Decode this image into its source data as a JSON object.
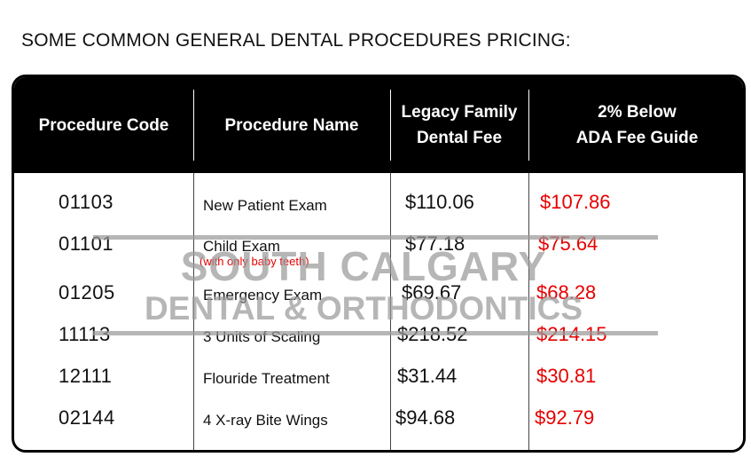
{
  "page_title": "SOME COMMON GENERAL DENTAL PROCEDURES PRICING:",
  "table": {
    "headers": {
      "code": "Procedure Code",
      "name": "Procedure Name",
      "fee_line1": "Legacy Family",
      "fee_line2": "Dental Fee",
      "ada_line1": "2% Below",
      "ada_line2": "ADA Fee Guide"
    },
    "rows": [
      {
        "code": "01103",
        "name": "New Patient Exam",
        "note": "",
        "fee": "$110.06",
        "ada": "$107.86"
      },
      {
        "code": "01101",
        "name": "Child Exam",
        "note": "(with only baby teeth)",
        "fee": "$77.18",
        "ada": "$75.64"
      },
      {
        "code": "01205",
        "name": "Emergency Exam",
        "note": "",
        "fee": "$69.67",
        "ada": "$68.28"
      },
      {
        "code": "11113",
        "name": "3 Units of Scaling",
        "note": "",
        "fee": "$218.52",
        "ada": "$214.15"
      },
      {
        "code": "12111",
        "name": "Flouride Treatment",
        "note": "",
        "fee": "$31.44",
        "ada": "$30.81"
      },
      {
        "code": "02144",
        "name": "4 X-ray Bite Wings",
        "note": "",
        "fee": "$94.68",
        "ada": "$92.79"
      }
    ]
  },
  "watermark": {
    "line1": "SOUTH CALGARY",
    "line2": "DENTAL & ORTHODONTICS",
    "color": "#9a9a9a"
  },
  "colors": {
    "header_bg": "#000000",
    "accent_red": "#e60000"
  }
}
